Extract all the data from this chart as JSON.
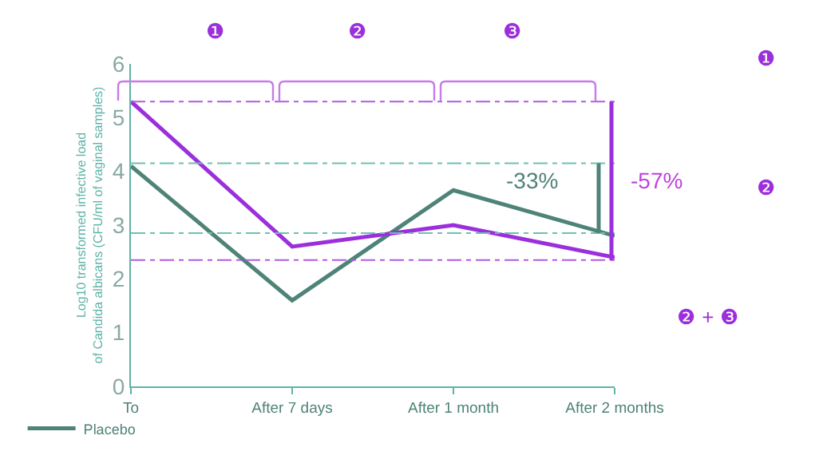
{
  "chart_data": {
    "type": "line",
    "ylabel": "Log10 transformed infective load\nof Candida albicans (CFU/ml of vaginal samples)",
    "categories": [
      "To",
      "After 7 days",
      "After 1 month",
      "After 2 months"
    ],
    "series": [
      {
        "name": "Placebo",
        "color": "#4e8378",
        "values": [
          4.1,
          1.6,
          3.65,
          2.8
        ]
      },
      {
        "color": "#9b2fdc",
        "values": [
          5.3,
          2.6,
          3.0,
          2.4
        ]
      }
    ],
    "ylim": [
      0,
      6
    ],
    "yticks": [
      0,
      1,
      2,
      3,
      4,
      5,
      6
    ],
    "grid": false,
    "legend": "bottom left",
    "marker": "none",
    "line_style": "solid",
    "ref_lines": [
      {
        "axis": "y",
        "value": 5.3,
        "color": "#b05ce0",
        "line_style": "dashed"
      },
      {
        "axis": "y",
        "value": 2.35,
        "color": "#b05ce0",
        "line_style": "dashed"
      },
      {
        "axis": "y",
        "value": 4.15,
        "color": "#6fbfb0",
        "line_style": "dashed"
      },
      {
        "axis": "y",
        "value": 2.85,
        "color": "#6fbfb0",
        "line_style": "dashed"
      }
    ],
    "annotations": [
      "-33%",
      "-57%",
      "❶",
      "❷",
      "❸",
      "❶",
      "❷",
      "❷ + ❸"
    ]
  }
}
